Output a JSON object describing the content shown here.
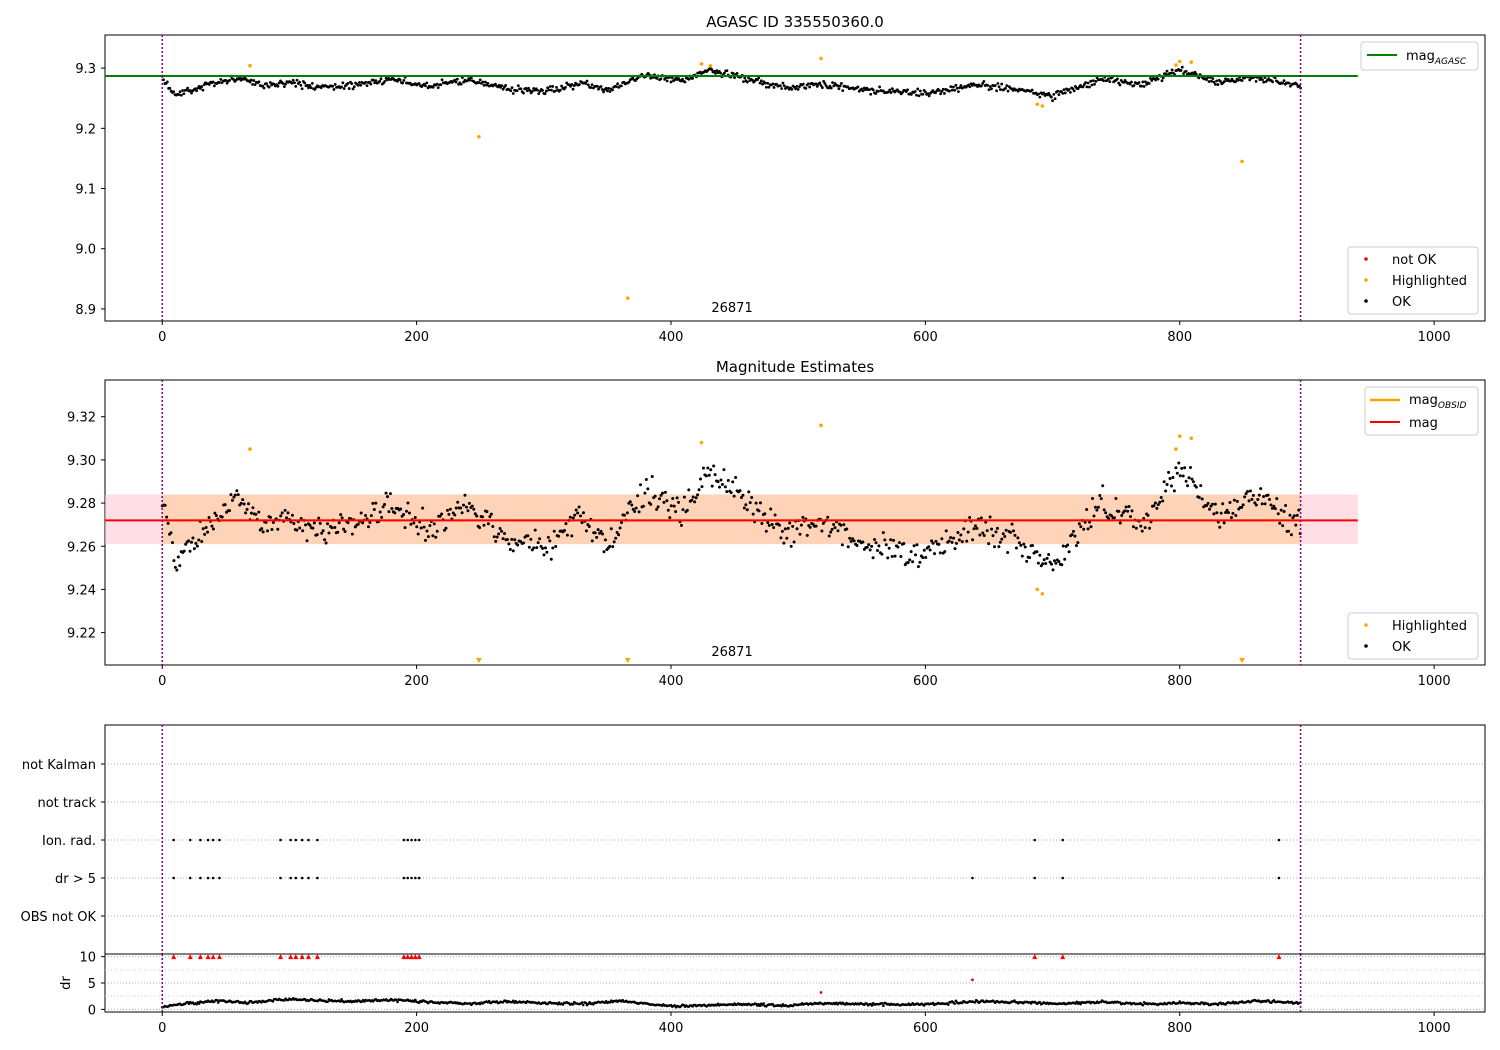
{
  "figure": {
    "top_title": "AGASC ID 335550360.0",
    "mid_title": "Magnitude Estimates",
    "obsid_label": "26871"
  },
  "chart_data": [
    {
      "type": "scatter",
      "title": "AGASC ID 335550360.0",
      "xlabel": "",
      "ylabel": "",
      "xlim": [
        -45,
        1040
      ],
      "ylim": [
        8.88,
        9.355
      ],
      "xticks": [
        "0",
        "200",
        "400",
        "600",
        "800",
        "1000"
      ],
      "yticks": [
        "8.9",
        "9.0",
        "9.1",
        "9.2",
        "9.3"
      ],
      "grid": false,
      "mag_agasc": 9.287,
      "obs_boundaries": [
        0,
        895
      ],
      "obsid_annotation": "26871",
      "legend_lines": [
        "mag",
        "AGASC"
      ],
      "legend_points": [
        "not OK",
        "Highlighted",
        "OK"
      ],
      "legend_lines_placement": "top-right",
      "legend_points_placement": "bottom-right",
      "highlighted": {
        "x": [
          69,
          249,
          366,
          424,
          431,
          518,
          688,
          692,
          797,
          800,
          809,
          849
        ],
        "y": [
          9.304,
          9.186,
          8.918,
          9.307,
          9.304,
          9.316,
          9.24,
          9.237,
          9.305,
          9.311,
          9.31,
          9.145
        ]
      },
      "ok_trend": {
        "x": [
          0,
          10,
          20,
          40,
          60,
          80,
          100,
          120,
          150,
          180,
          210,
          240,
          270,
          300,
          330,
          350,
          380,
          410,
          430,
          460,
          490,
          520,
          560,
          600,
          640,
          680,
          700,
          740,
          770,
          800,
          830,
          860,
          895
        ],
        "y": [
          9.28,
          9.256,
          9.262,
          9.275,
          9.283,
          9.272,
          9.276,
          9.268,
          9.272,
          9.281,
          9.27,
          9.281,
          9.265,
          9.262,
          9.275,
          9.262,
          9.288,
          9.279,
          9.297,
          9.282,
          9.268,
          9.272,
          9.262,
          9.258,
          9.272,
          9.263,
          9.252,
          9.283,
          9.272,
          9.298,
          9.276,
          9.284,
          9.271
        ]
      }
    },
    {
      "type": "scatter",
      "title": "Magnitude Estimates",
      "xlabel": "",
      "ylabel": "",
      "xlim": [
        -45,
        1040
      ],
      "ylim": [
        9.205,
        9.337
      ],
      "xticks": [
        "0",
        "200",
        "400",
        "600",
        "800",
        "1000"
      ],
      "yticks": [
        "9.22",
        "9.24",
        "9.26",
        "9.28",
        "9.30",
        "9.32"
      ],
      "grid": false,
      "mag_mean": 9.272,
      "mag_band": [
        9.261,
        9.284
      ],
      "obs_boundaries": [
        0,
        895
      ],
      "obsid_annotation": "26871",
      "legend_lines": [
        "mag",
        "OBSID",
        "mag"
      ],
      "legend_points": [
        "Highlighted",
        "OK"
      ],
      "legend_lines_placement": "top-right",
      "legend_points_placement": "bottom-right",
      "highlighted": {
        "x": [
          69,
          424,
          518,
          688,
          692,
          797,
          800,
          809
        ],
        "y": [
          9.305,
          9.308,
          9.316,
          9.24,
          9.238,
          9.305,
          9.311,
          9.31
        ]
      },
      "below_limit_markers_x": [
        249,
        366,
        849
      ]
    },
    {
      "type": "scatter",
      "title": "",
      "xlim": [
        -45,
        1040
      ],
      "categories": [
        "not Kalman",
        "not track",
        "Ion. rad.",
        "dr > 5",
        "OBS not OK"
      ],
      "grid": true,
      "flags": {
        "Ion. rad.": [
          9,
          22,
          30,
          36,
          40,
          45,
          93,
          101,
          105,
          110,
          115,
          122,
          190,
          193,
          196,
          199,
          202,
          686,
          708,
          878
        ],
        "dr > 5": [
          9,
          22,
          30,
          36,
          40,
          45,
          93,
          101,
          105,
          110,
          115,
          122,
          190,
          193,
          196,
          199,
          202,
          637,
          686,
          708,
          878
        ]
      }
    },
    {
      "type": "scatter",
      "title": "",
      "xlabel": "",
      "ylabel": "dr",
      "xlim": [
        -45,
        1040
      ],
      "ylim": [
        -0.5,
        10.5
      ],
      "xticks": [
        "0",
        "200",
        "400",
        "600",
        "800",
        "1000"
      ],
      "yticks": [
        "0",
        "5",
        "10"
      ],
      "grid": true,
      "clipped_at_10_x": [
        9,
        22,
        30,
        36,
        40,
        45,
        93,
        101,
        105,
        110,
        115,
        122,
        190,
        193,
        196,
        199,
        202,
        686,
        708,
        878
      ],
      "red_points": {
        "x": [
          518,
          637
        ],
        "y": [
          3.2,
          5.6
        ]
      },
      "dr_trend": {
        "x": [
          0,
          15,
          30,
          45,
          70,
          100,
          125,
          150,
          180,
          210,
          240,
          270,
          300,
          330,
          360,
          400,
          430,
          460,
          490,
          520,
          550,
          580,
          610,
          640,
          680,
          710,
          740,
          770,
          800,
          830,
          860,
          895
        ],
        "y": [
          0.4,
          1.1,
          1.3,
          1.6,
          1.3,
          2.0,
          1.7,
          1.5,
          1.8,
          1.4,
          1.1,
          1.5,
          1.2,
          1.0,
          1.6,
          0.6,
          0.8,
          1.0,
          0.7,
          1.2,
          1.0,
          0.9,
          1.1,
          1.5,
          1.3,
          1.1,
          1.4,
          1.0,
          1.2,
          1.0,
          1.6,
          1.2
        ]
      }
    }
  ]
}
